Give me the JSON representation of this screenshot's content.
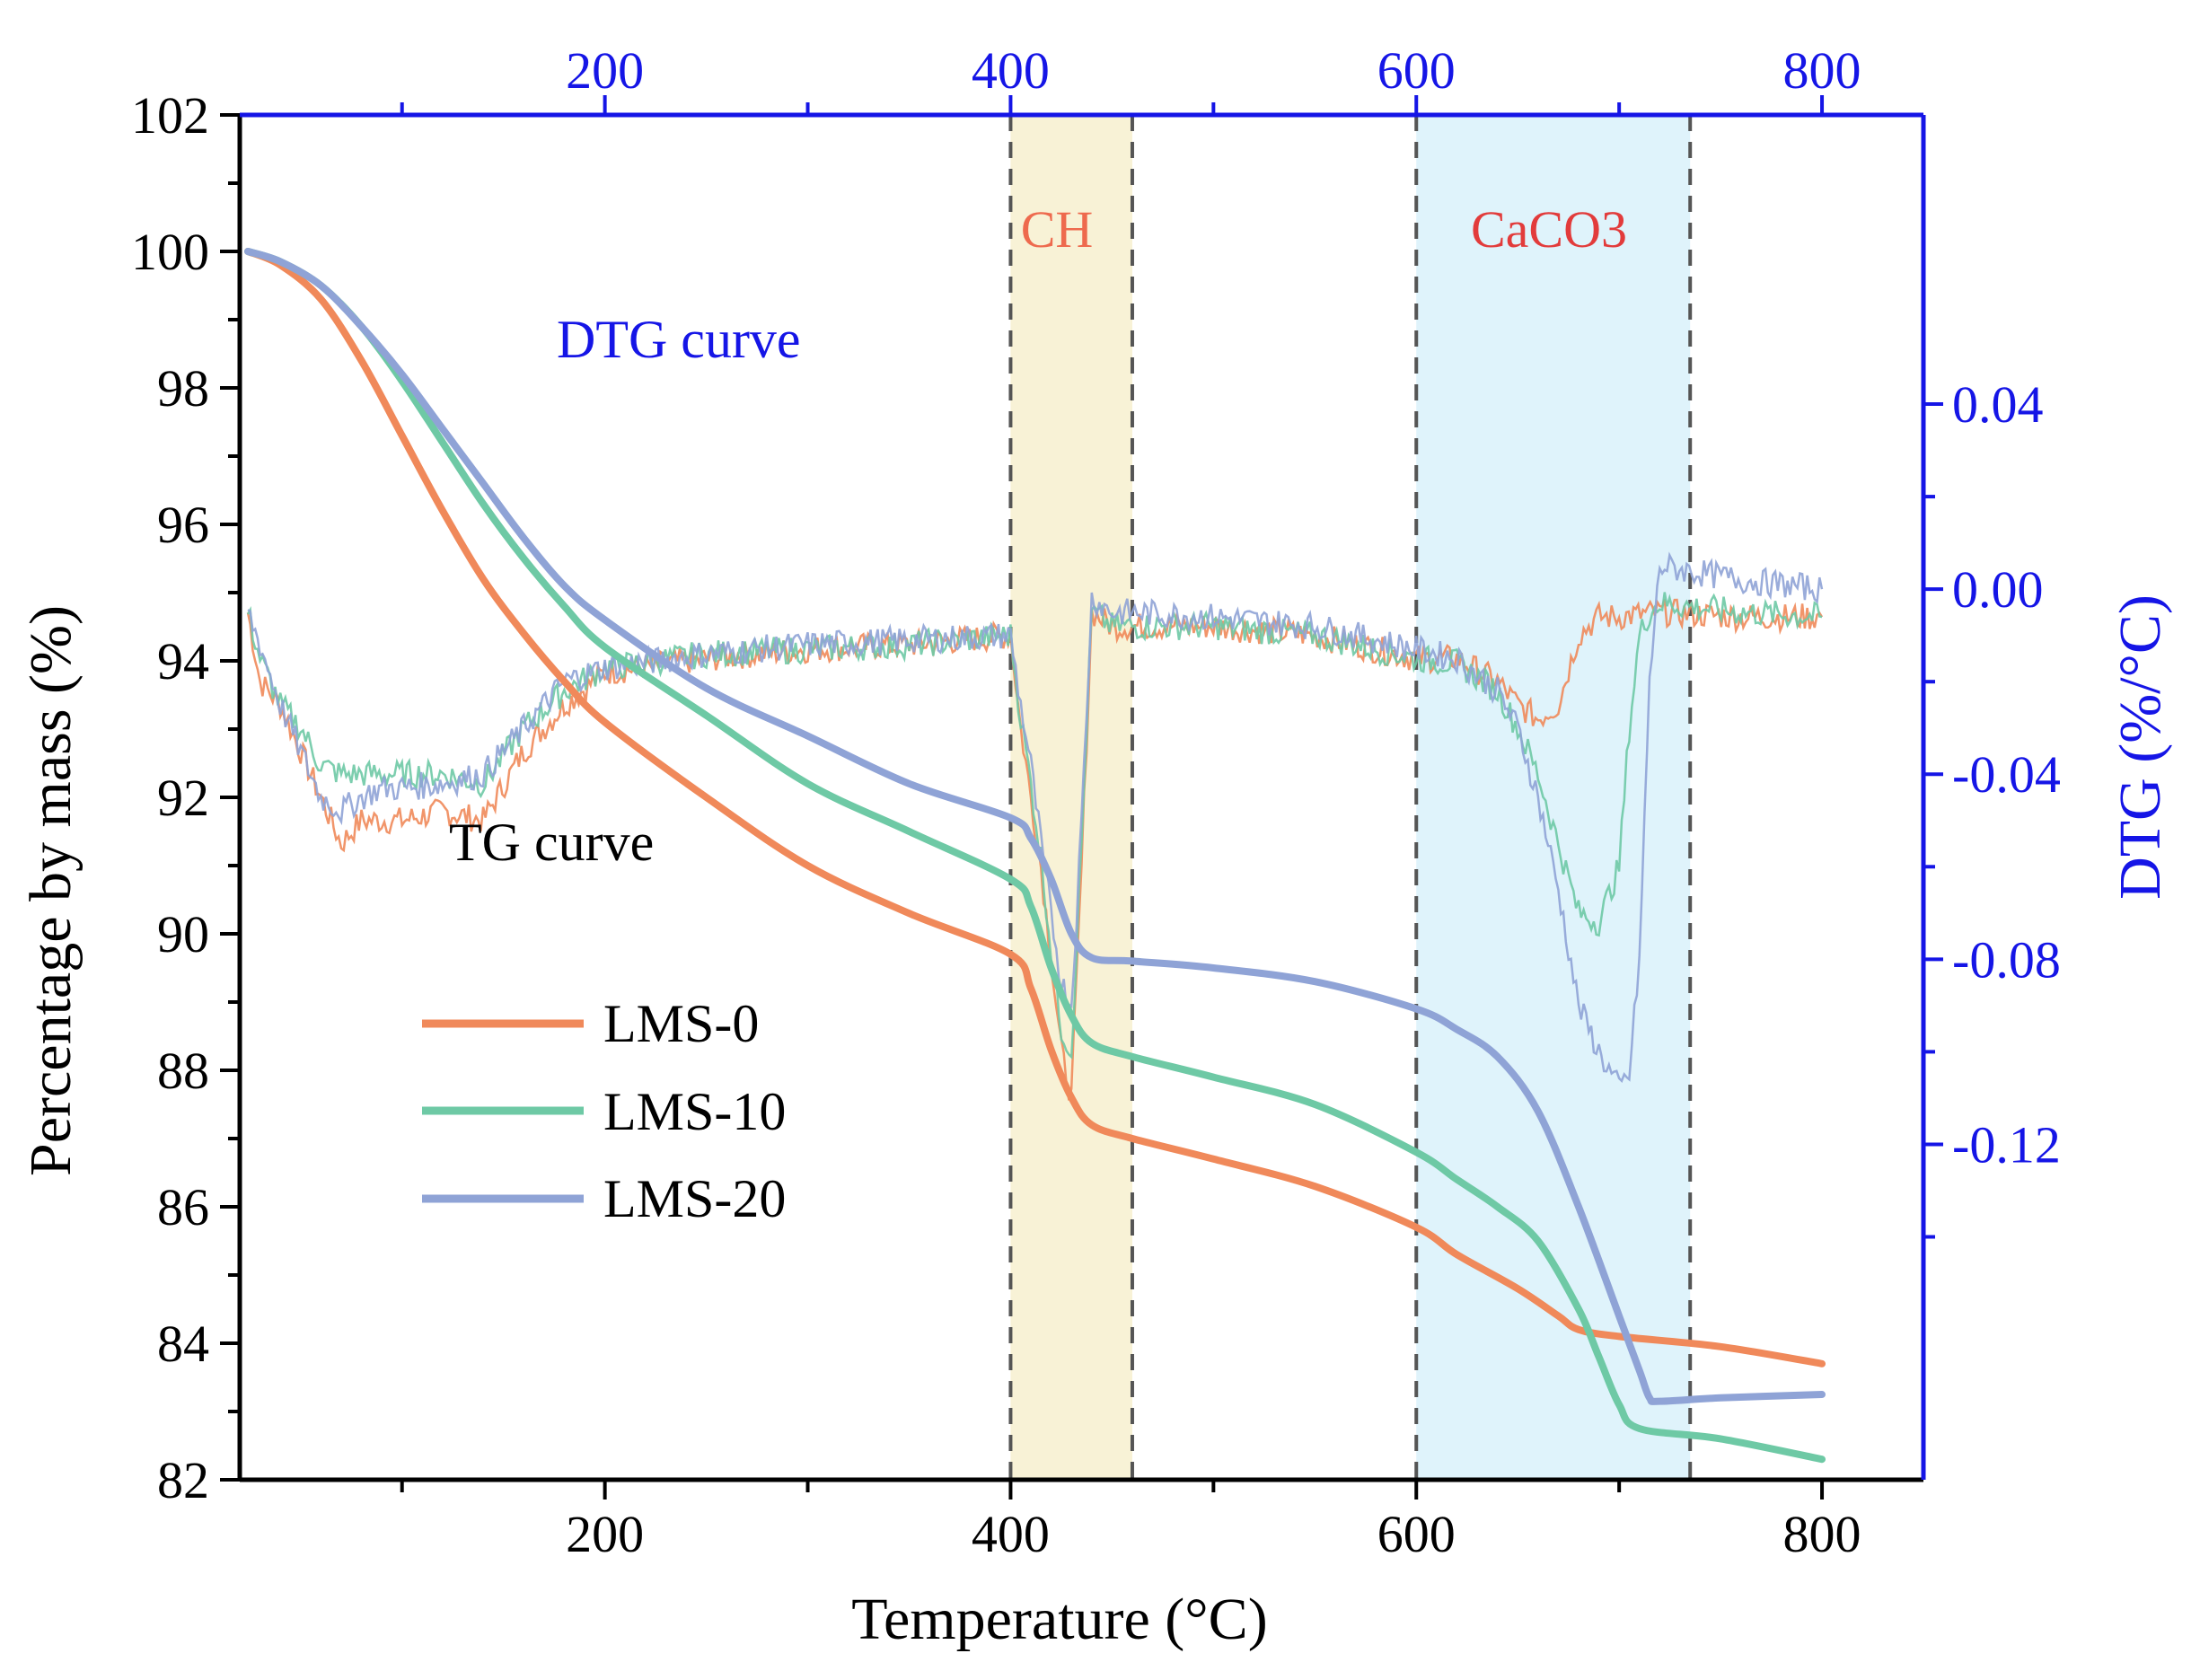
{
  "chart_data": {
    "type": "line",
    "title": "",
    "xlabel": "Temperature (°C)",
    "ylabel": "Percentage by mass (%)",
    "y2label": "DTG (%/°C)",
    "xlim": [
      20,
      850
    ],
    "ylim": [
      82,
      102
    ],
    "y2lim": [
      -0.1925,
      0.1025
    ],
    "x_ticks": [
      200,
      400,
      600,
      800
    ],
    "y_ticks": [
      82,
      84,
      86,
      88,
      90,
      92,
      94,
      96,
      98,
      100,
      102
    ],
    "y2_ticks": [
      0.04,
      0.0,
      -0.04,
      -0.08,
      -0.12
    ],
    "y2_tick_labels": [
      "0.04",
      "0.00",
      "-0.04",
      "-0.08",
      "-0.12"
    ],
    "x_tick_labels": [
      "200",
      "400",
      "600",
      "800"
    ],
    "top_x_tick_labels": [
      "200",
      "400",
      "600",
      "800"
    ],
    "y_tick_labels": [
      "82",
      "84",
      "86",
      "88",
      "90",
      "92",
      "94",
      "96",
      "98",
      "100",
      "102"
    ],
    "colors": {
      "LMS-0": "#f0895a",
      "LMS-10": "#6ec9a5",
      "LMS-20": "#8fa3d6",
      "axis_right": "#1515e6",
      "ch_band": "#f8f2d6",
      "caco3_band": "#dff3fb",
      "ch_label": "#ee6a4e",
      "caco3_label": "#e23b3b",
      "dtg_label": "#1515e6"
    },
    "bands": [
      {
        "name": "CH",
        "x0": 400,
        "x1": 460
      },
      {
        "name": "CaCO3",
        "x0": 600,
        "x1": 735
      }
    ],
    "annotations": {
      "ch": "CH",
      "caco3": "CaCO3",
      "dtg": "DTG curve",
      "tg": "TG curve"
    },
    "legend": {
      "position": "lower-left",
      "entries": [
        "LMS-0",
        "LMS-10",
        "LMS-20"
      ]
    },
    "tg_series": [
      {
        "name": "LMS-0",
        "x": [
          24,
          40,
          60,
          80,
          100,
          120,
          140,
          160,
          180,
          200,
          250,
          300,
          350,
          400,
          410,
          420,
          430,
          440,
          460,
          500,
          550,
          600,
          620,
          650,
          670,
          680,
          700,
          750,
          800
        ],
        "y": [
          100.0,
          99.8,
          99.3,
          98.4,
          97.3,
          96.2,
          95.2,
          94.4,
          93.7,
          93.1,
          92.0,
          91.0,
          90.3,
          89.7,
          89.2,
          88.3,
          87.6,
          87.2,
          87.0,
          86.7,
          86.3,
          85.7,
          85.3,
          84.8,
          84.4,
          84.2,
          84.1,
          83.95,
          83.7
        ]
      },
      {
        "name": "LMS-10",
        "x": [
          24,
          40,
          60,
          80,
          100,
          120,
          140,
          160,
          180,
          200,
          250,
          300,
          350,
          400,
          410,
          420,
          430,
          440,
          460,
          500,
          550,
          600,
          620,
          640,
          660,
          680,
          690,
          700,
          710,
          750,
          800
        ],
        "y": [
          100.0,
          99.85,
          99.5,
          98.9,
          98.1,
          97.2,
          96.3,
          95.5,
          94.8,
          94.2,
          93.2,
          92.2,
          91.5,
          90.8,
          90.4,
          89.5,
          88.8,
          88.4,
          88.2,
          87.9,
          87.5,
          86.8,
          86.4,
          86.0,
          85.5,
          84.5,
          83.8,
          83.1,
          82.75,
          82.6,
          82.3
        ]
      },
      {
        "name": "LMS-20",
        "x": [
          24,
          40,
          60,
          80,
          100,
          120,
          140,
          160,
          180,
          200,
          250,
          300,
          350,
          400,
          410,
          420,
          430,
          440,
          460,
          500,
          550,
          600,
          620,
          640,
          660,
          680,
          700,
          710,
          715,
          720,
          750,
          800
        ],
        "y": [
          100.0,
          99.85,
          99.5,
          98.9,
          98.2,
          97.4,
          96.6,
          95.8,
          95.1,
          94.6,
          93.6,
          92.9,
          92.2,
          91.7,
          91.4,
          90.8,
          90.0,
          89.65,
          89.6,
          89.5,
          89.3,
          88.9,
          88.6,
          88.2,
          87.4,
          86.0,
          84.4,
          83.6,
          83.2,
          83.15,
          83.2,
          83.25
        ]
      }
    ],
    "dtg_series": [
      {
        "name": "LMS-0",
        "x": [
          24,
          30,
          40,
          50,
          60,
          70,
          80,
          90,
          100,
          120,
          140,
          160,
          180,
          200,
          250,
          300,
          350,
          400,
          405,
          410,
          415,
          420,
          425,
          430,
          435,
          440,
          450,
          460,
          500,
          550,
          600,
          620,
          640,
          650,
          660,
          670,
          680,
          690,
          700,
          720,
          760,
          800
        ],
        "y": [
          -0.005,
          -0.02,
          -0.025,
          -0.035,
          -0.045,
          -0.055,
          -0.05,
          -0.05,
          -0.05,
          -0.048,
          -0.05,
          -0.035,
          -0.025,
          -0.018,
          -0.015,
          -0.013,
          -0.012,
          -0.01,
          -0.03,
          -0.045,
          -0.06,
          -0.08,
          -0.1,
          -0.11,
          -0.06,
          -0.005,
          -0.008,
          -0.008,
          -0.008,
          -0.01,
          -0.015,
          -0.015,
          -0.02,
          -0.025,
          -0.028,
          -0.025,
          -0.01,
          -0.006,
          -0.006,
          -0.005,
          -0.006,
          -0.006
        ]
      },
      {
        "name": "LMS-10",
        "x": [
          24,
          30,
          40,
          50,
          60,
          70,
          80,
          90,
          100,
          120,
          140,
          160,
          180,
          200,
          250,
          300,
          350,
          400,
          405,
          410,
          415,
          420,
          425,
          430,
          435,
          440,
          450,
          460,
          500,
          550,
          600,
          620,
          640,
          650,
          660,
          670,
          680,
          690,
          700,
          705,
          710,
          715,
          720,
          760,
          800
        ],
        "y": [
          -0.005,
          -0.015,
          -0.025,
          -0.03,
          -0.038,
          -0.04,
          -0.04,
          -0.04,
          -0.04,
          -0.04,
          -0.042,
          -0.03,
          -0.022,
          -0.017,
          -0.014,
          -0.013,
          -0.012,
          -0.01,
          -0.028,
          -0.042,
          -0.058,
          -0.078,
          -0.095,
          -0.1,
          -0.055,
          -0.005,
          -0.008,
          -0.008,
          -0.008,
          -0.01,
          -0.015,
          -0.016,
          -0.022,
          -0.03,
          -0.04,
          -0.055,
          -0.07,
          -0.072,
          -0.06,
          -0.03,
          -0.01,
          -0.005,
          -0.003,
          -0.005,
          -0.006
        ]
      },
      {
        "name": "LMS-20",
        "x": [
          24,
          30,
          40,
          50,
          60,
          70,
          80,
          90,
          100,
          120,
          140,
          160,
          180,
          200,
          250,
          300,
          350,
          400,
          405,
          410,
          415,
          420,
          425,
          430,
          435,
          440,
          450,
          460,
          500,
          550,
          600,
          620,
          640,
          650,
          660,
          670,
          680,
          690,
          700,
          705,
          710,
          715,
          720,
          760,
          800
        ],
        "y": [
          -0.005,
          -0.012,
          -0.025,
          -0.035,
          -0.045,
          -0.048,
          -0.045,
          -0.043,
          -0.043,
          -0.042,
          -0.04,
          -0.03,
          -0.02,
          -0.017,
          -0.014,
          -0.012,
          -0.011,
          -0.01,
          -0.025,
          -0.038,
          -0.055,
          -0.07,
          -0.085,
          -0.09,
          -0.05,
          -0.002,
          -0.005,
          -0.005,
          -0.006,
          -0.008,
          -0.013,
          -0.015,
          -0.022,
          -0.03,
          -0.045,
          -0.065,
          -0.09,
          -0.1,
          -0.108,
          -0.105,
          -0.08,
          -0.02,
          0.005,
          0.002,
          0.0
        ]
      }
    ]
  }
}
